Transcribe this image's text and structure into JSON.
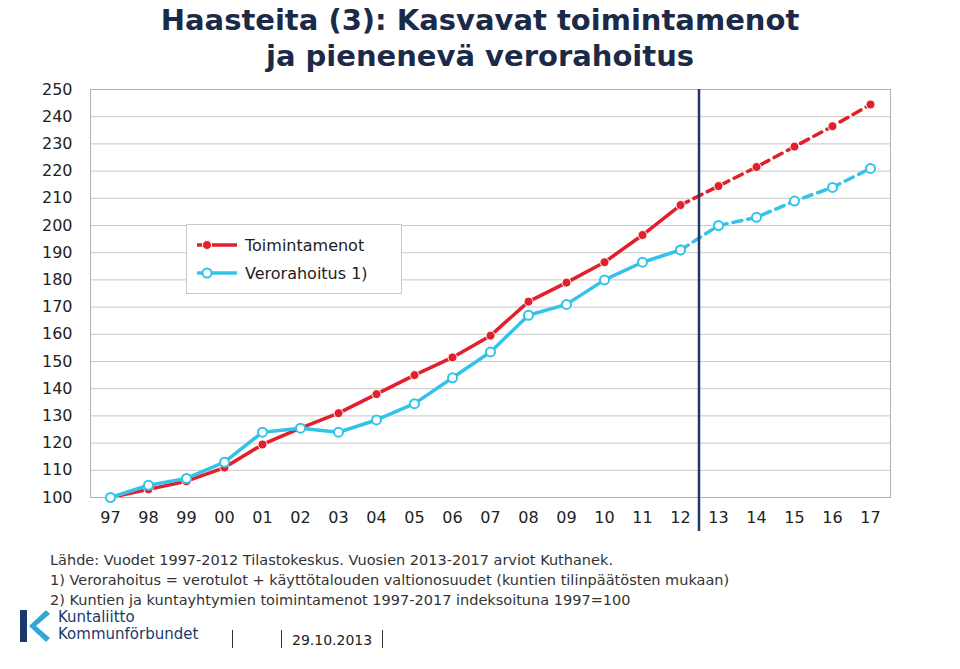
{
  "chart_data": {
    "type": "line",
    "title": "Haasteita (3): Kasvavat toimintamenot\nja pienenevä verorahoitus",
    "categories": [
      "97",
      "98",
      "99",
      "00",
      "01",
      "02",
      "03",
      "04",
      "05",
      "06",
      "07",
      "08",
      "09",
      "10",
      "11",
      "12",
      "13",
      "14",
      "15",
      "16",
      "17"
    ],
    "series": [
      {
        "name": "Toimintamenot",
        "color": "#e2202b",
        "marker": "circle",
        "line_style": "solid",
        "values": [
          100,
          103,
          106,
          111,
          119.5,
          125.5,
          131,
          138,
          145,
          151.5,
          159.5,
          172,
          179,
          186.5,
          196.5,
          207.5,
          null,
          null,
          null,
          null,
          null
        ]
      },
      {
        "name": "Toimintamenot",
        "color": "#e2202b",
        "marker": "circle",
        "line_style": "dashed",
        "values": [
          null,
          null,
          null,
          null,
          null,
          null,
          null,
          null,
          null,
          null,
          null,
          null,
          null,
          null,
          null,
          207.5,
          214.5,
          221.5,
          229,
          236.5,
          244.5
        ]
      },
      {
        "name": "Verorahoitus 1)",
        "color": "#33c3e8",
        "marker": "open_circle",
        "line_style": "solid",
        "values": [
          100,
          104.5,
          107,
          113,
          124,
          125.5,
          124,
          128.5,
          134.5,
          144,
          153.5,
          167,
          171,
          180,
          186.5,
          191,
          null,
          null,
          null,
          null,
          null
        ]
      },
      {
        "name": "Verorahoitus 1)",
        "color": "#33c3e8",
        "marker": "open_circle",
        "line_style": "dashed",
        "values": [
          null,
          null,
          null,
          null,
          null,
          null,
          null,
          null,
          null,
          null,
          null,
          null,
          null,
          null,
          null,
          191,
          200,
          203,
          209,
          214,
          221
        ]
      }
    ],
    "ylim": [
      100,
      250
    ],
    "yticks": [
      100,
      110,
      120,
      130,
      140,
      150,
      160,
      170,
      180,
      190,
      200,
      210,
      220,
      230,
      240,
      250
    ],
    "grid": true,
    "legend": "top-left",
    "notes": [
      "Lähde: Vuodet 1997-2012 Tilastokeskus. Vuosien 2013-2017 arviot Kuthanek.",
      "1)  Verorahoitus = verotulot + käyttötalouden valtionosuudet (kuntien tilinpäätösten mukaan)",
      "2)  Kuntien ja kuntayhtymien toimintamenot 1997-2017 indeksoituna 1997=100"
    ],
    "logo_text": [
      "Kuntaliitto",
      "Kommunförbundet"
    ],
    "date": "29.10.2013"
  }
}
